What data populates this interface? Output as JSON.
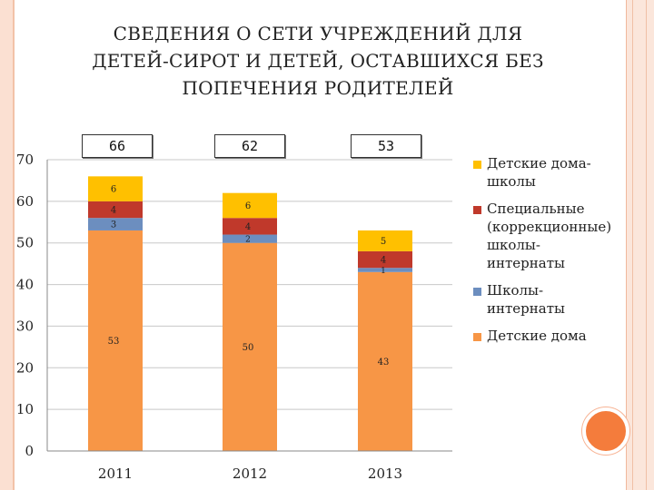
{
  "title": {
    "lines": [
      "СВЕДЕНИЯ О СЕТИ УЧРЕЖДЕНИЙ ДЛЯ",
      "ДЕТЕЙ-СИРОТ И ДЕТЕЙ, ОСТАВШИХСЯ БЕЗ",
      "ПОПЕЧЕНИЯ РОДИТЕЛЕЙ"
    ]
  },
  "totals": [
    "66",
    "62",
    "53"
  ],
  "legend": [
    {
      "label": "Детские дома-\nшколы",
      "color": "#ffc000"
    },
    {
      "label": "Специальные\n(коррекционные)\nшколы-\nинтернаты",
      "color": "#c0392b"
    },
    {
      "label": "Школы-\nинтернаты",
      "color": "#6c8ebf"
    },
    {
      "label": "Детские дома",
      "color": "#f79646"
    }
  ],
  "chart_data": {
    "type": "bar",
    "stacked": true,
    "title": "",
    "xlabel": "",
    "ylabel": "",
    "categories": [
      "2011",
      "2012",
      "2013"
    ],
    "ylim": [
      0,
      70
    ],
    "yticks": [
      0,
      10,
      20,
      30,
      40,
      50,
      60,
      70
    ],
    "grid": true,
    "legend_position": "right",
    "series": [
      {
        "name": "Детские дома",
        "color": "#f79646",
        "values": [
          53,
          50,
          43
        ]
      },
      {
        "name": "Школы-интернаты",
        "color": "#6c8ebf",
        "values": [
          3,
          2,
          1
        ]
      },
      {
        "name": "Специальные (коррекционные) школы-интернаты",
        "color": "#c0392b",
        "values": [
          4,
          4,
          4
        ]
      },
      {
        "name": "Детские дома-школы",
        "color": "#ffc000",
        "values": [
          6,
          6,
          5
        ]
      }
    ]
  }
}
